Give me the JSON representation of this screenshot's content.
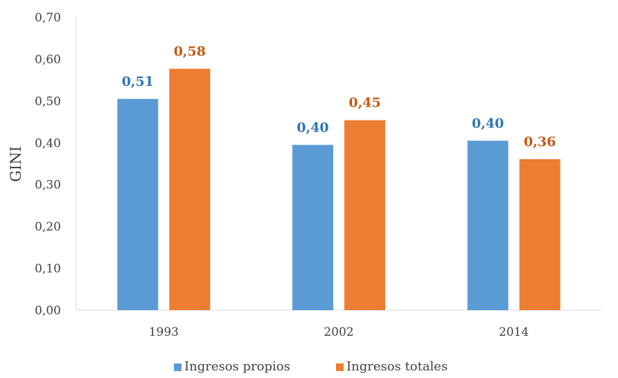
{
  "chart_data": {
    "type": "bar",
    "categories": [
      "1993",
      "2002",
      "2014"
    ],
    "series": [
      {
        "name": "Ingresos propios",
        "values": [
          0.51,
          0.4,
          0.4
        ],
        "color": "#5B9BD5"
      },
      {
        "name": "Ingresos totales",
        "values": [
          0.58,
          0.45,
          0.36
        ],
        "color": "#ED7D31"
      }
    ],
    "bar_values": [
      [
        0.505,
        0.395,
        0.405
      ],
      [
        0.577,
        0.454,
        0.361
      ]
    ],
    "data_labels": [
      [
        "0,51",
        "0,40",
        "0,40"
      ],
      [
        "0,58",
        "0,45",
        "0,36"
      ]
    ],
    "label_colors": [
      "#2E75B6",
      "#C55A11"
    ],
    "ylabel": "GINI",
    "ylim": [
      0,
      0.7
    ],
    "yticks": [
      "0,00",
      "0,10",
      "0,20",
      "0,30",
      "0,40",
      "0,50",
      "0,60",
      "0,70"
    ],
    "grid": false,
    "legend": "bottom-center"
  }
}
